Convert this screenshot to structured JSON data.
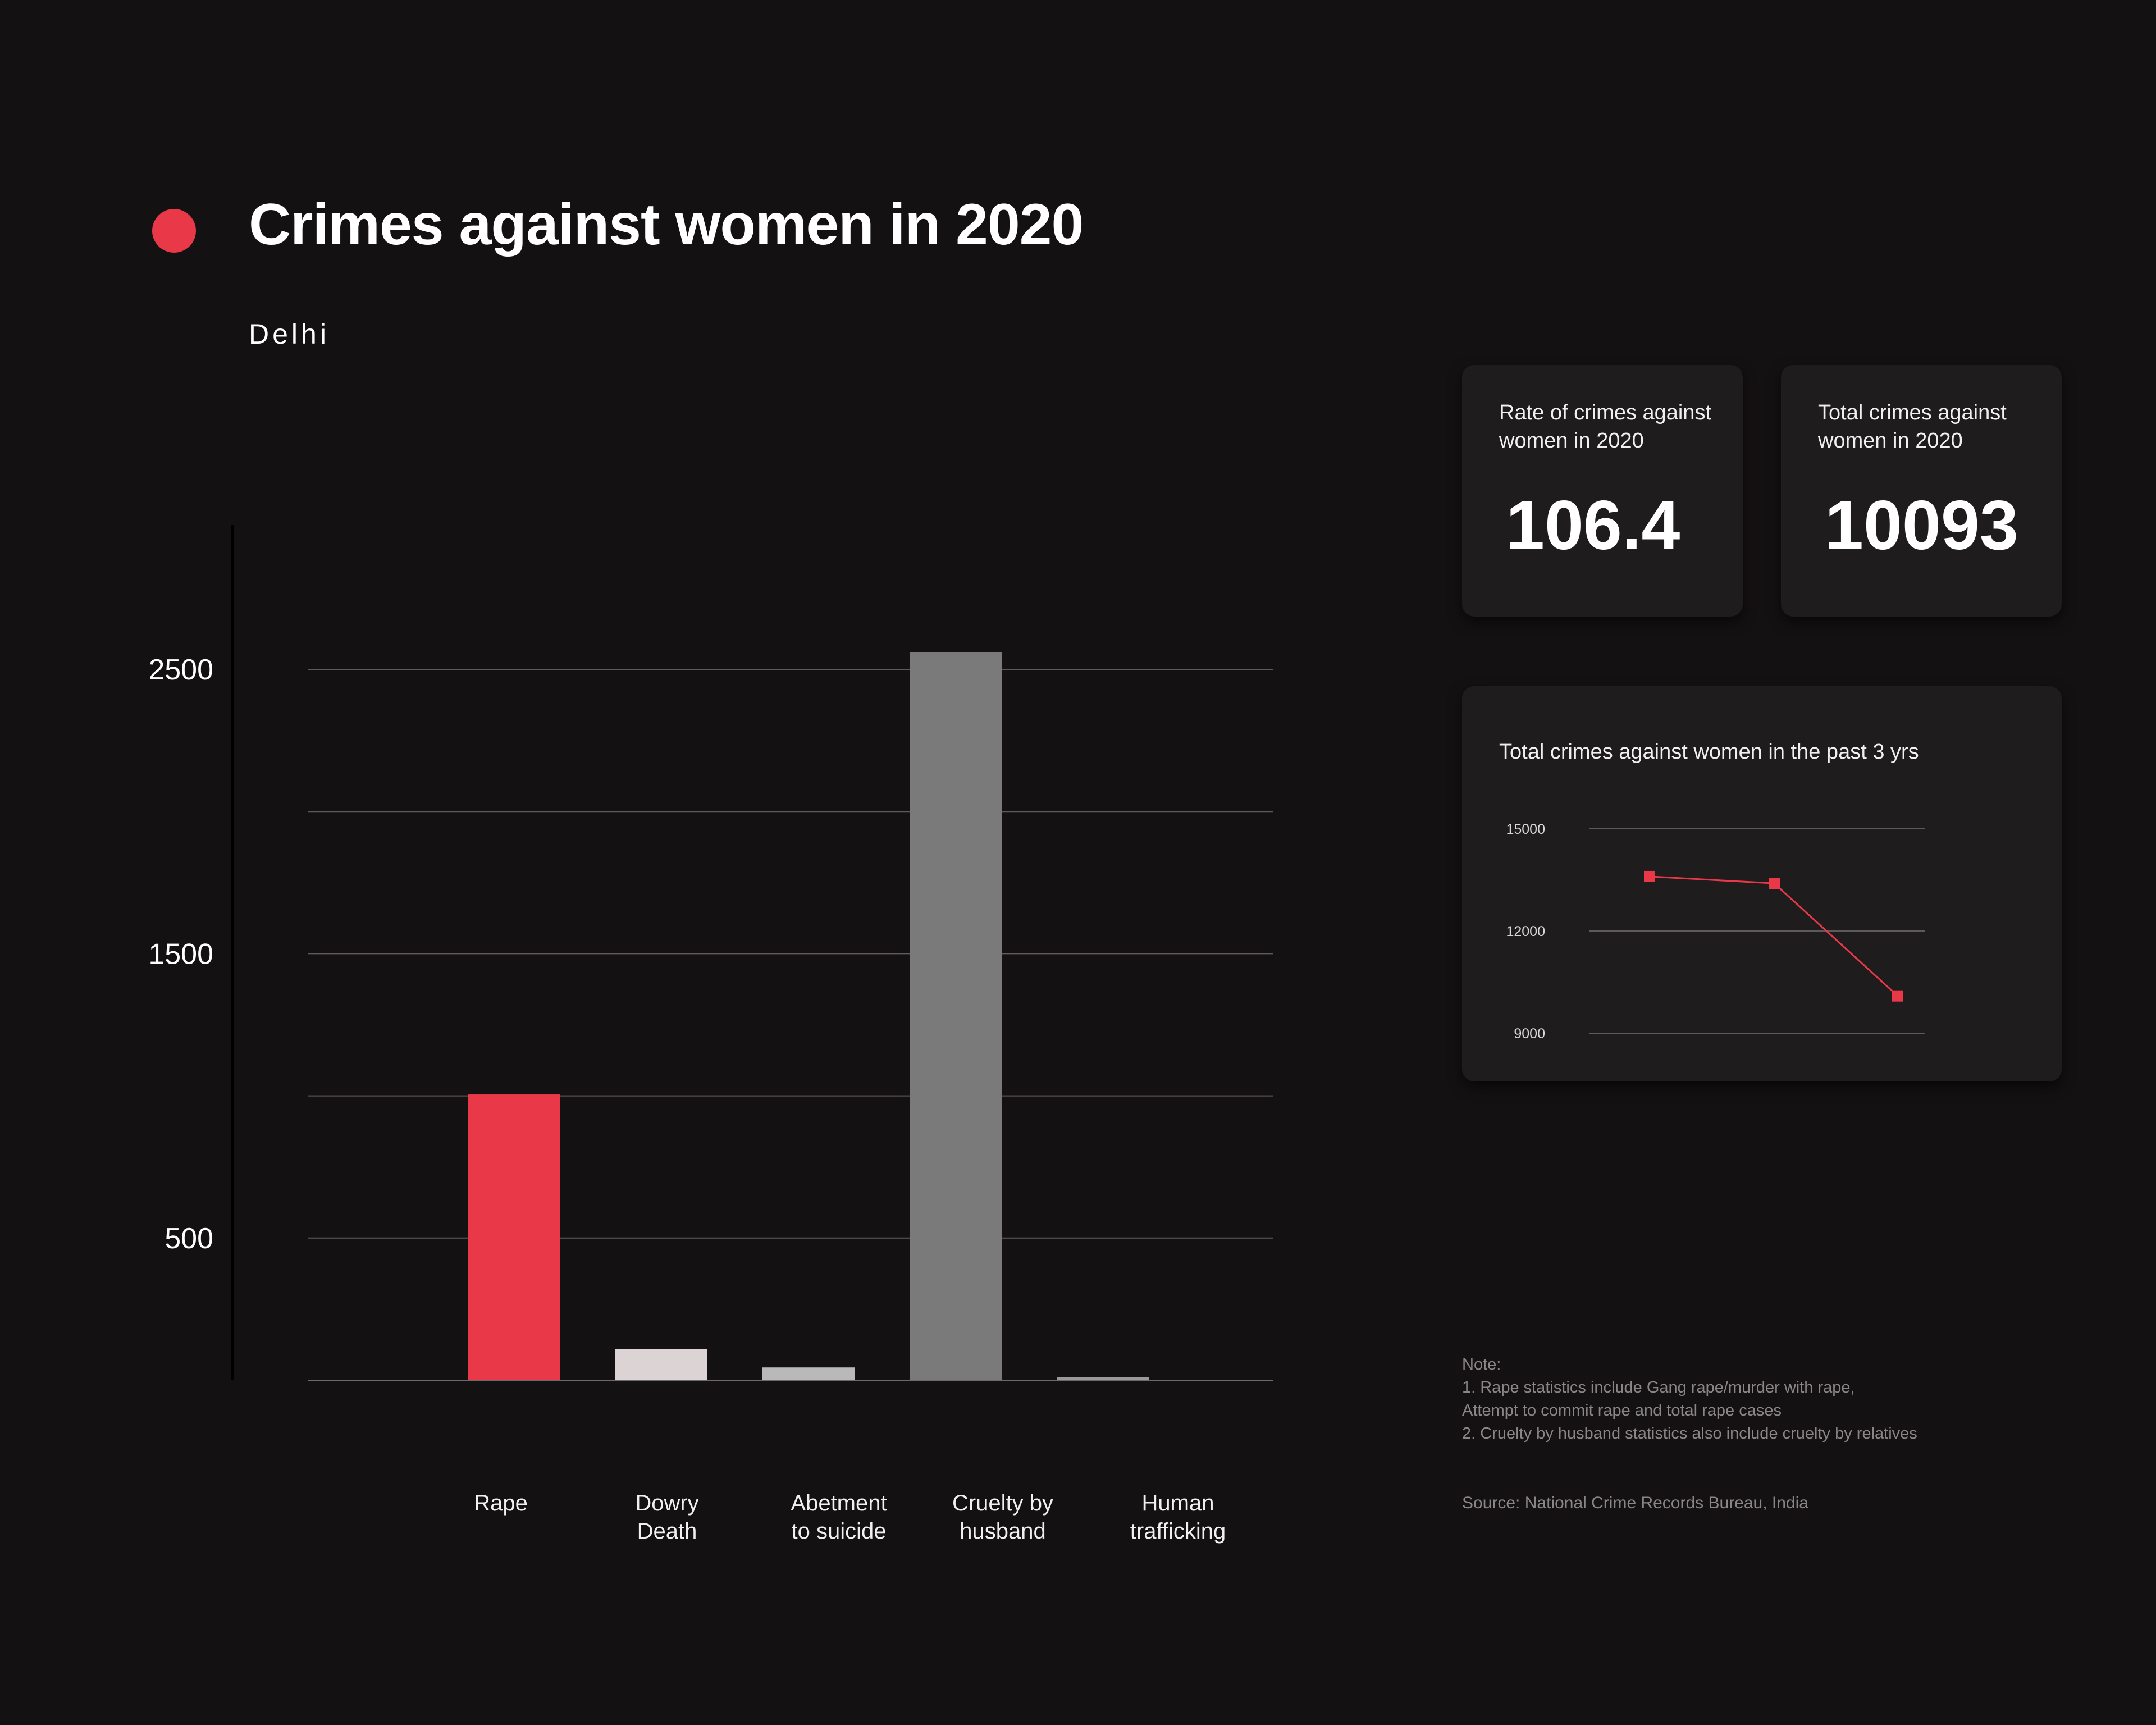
{
  "header": {
    "title": "Crimes against women in 2020",
    "subtitle": "Delhi"
  },
  "colors": {
    "accent": "#e93847",
    "background": "#141112",
    "card": "#1f1c1d"
  },
  "chart_data": [
    {
      "type": "bar",
      "categories": [
        "Rape",
        "Dowry Death",
        "Abetment to suicide",
        "Cruelty by husband",
        "Human trafficking"
      ],
      "category_lines": [
        [
          "Rape"
        ],
        [
          "Dowry",
          "Death"
        ],
        [
          "Abetment",
          "to suicide"
        ],
        [
          "Cruelty by",
          "husband"
        ],
        [
          "Human",
          "trafficking"
        ]
      ],
      "values": [
        1005,
        110,
        45,
        2560,
        10
      ],
      "bar_colors": [
        "#e93847",
        "#dcd4d4",
        "#b9b9b9",
        "#7a7a7a",
        "#9a9a9a"
      ],
      "yticks": [
        2500,
        1500,
        500
      ],
      "ylim": [
        0,
        2500
      ],
      "gridlines": [
        500,
        1000,
        1500,
        2000,
        2500
      ],
      "grid": true
    },
    {
      "type": "line",
      "title": "Total crimes against women in the past 3 yrs",
      "values": [
        13600,
        13400,
        10093
      ],
      "yticks": [
        15000,
        12000,
        9000
      ],
      "ylim": [
        9000,
        15000
      ],
      "grid": true,
      "color": "#e93847"
    }
  ],
  "stats": {
    "rate_label": "Rate of crimes against women in 2020",
    "rate_value": "106.4",
    "total_label": "Total crimes against women in 2020",
    "total_value": "10093"
  },
  "note": {
    "heading": "Note:",
    "line1": "1. Rape statistics include Gang rape/murder with rape,",
    "line2": "Attempt to commit rape and total rape cases",
    "line3": "2. Cruelty by husband statistics also include cruelty by relatives"
  },
  "source": "Source: National Crime Records Bureau, India"
}
